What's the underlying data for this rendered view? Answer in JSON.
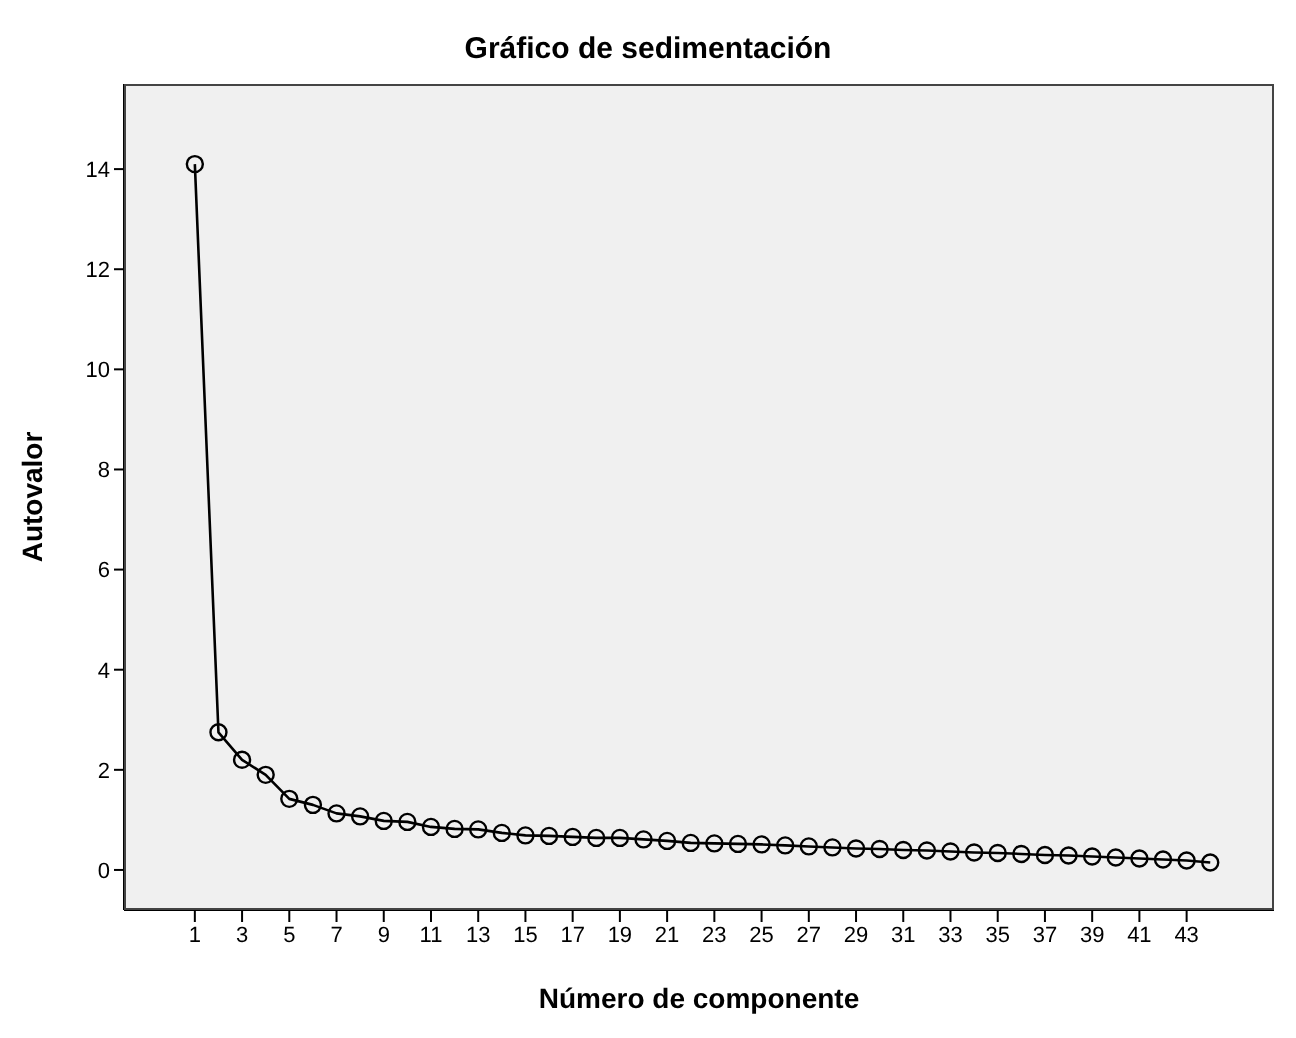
{
  "chart_data": {
    "type": "line",
    "title": "Gráfico de sedimentación",
    "xlabel": "Número de componente",
    "ylabel": "Autovalor",
    "x": [
      1,
      2,
      3,
      4,
      5,
      6,
      7,
      8,
      9,
      10,
      11,
      12,
      13,
      14,
      15,
      16,
      17,
      18,
      19,
      20,
      21,
      22,
      23,
      24,
      25,
      26,
      27,
      28,
      29,
      30,
      31,
      32,
      33,
      34,
      35,
      36,
      37,
      38,
      39,
      40,
      41,
      42,
      43,
      44
    ],
    "values": [
      14.1,
      2.75,
      2.2,
      1.9,
      1.42,
      1.3,
      1.13,
      1.07,
      0.98,
      0.96,
      0.86,
      0.82,
      0.81,
      0.74,
      0.69,
      0.68,
      0.66,
      0.64,
      0.64,
      0.61,
      0.58,
      0.54,
      0.53,
      0.52,
      0.51,
      0.49,
      0.47,
      0.45,
      0.43,
      0.42,
      0.4,
      0.39,
      0.37,
      0.35,
      0.34,
      0.32,
      0.3,
      0.29,
      0.27,
      0.25,
      0.23,
      0.21,
      0.19,
      0.15
    ],
    "color": "#000000",
    "marker": "circle",
    "line_style": "solid",
    "grid": false,
    "legend": false,
    "xlim": [
      -2,
      46.7
    ],
    "xticks": [
      1,
      3,
      5,
      7,
      9,
      11,
      13,
      15,
      17,
      19,
      21,
      23,
      25,
      27,
      29,
      31,
      33,
      35,
      37,
      39,
      41,
      43
    ],
    "ylim": [
      -0.8,
      15.7
    ],
    "yticks": [
      0,
      2,
      4,
      6,
      8,
      10,
      12,
      14
    ]
  }
}
